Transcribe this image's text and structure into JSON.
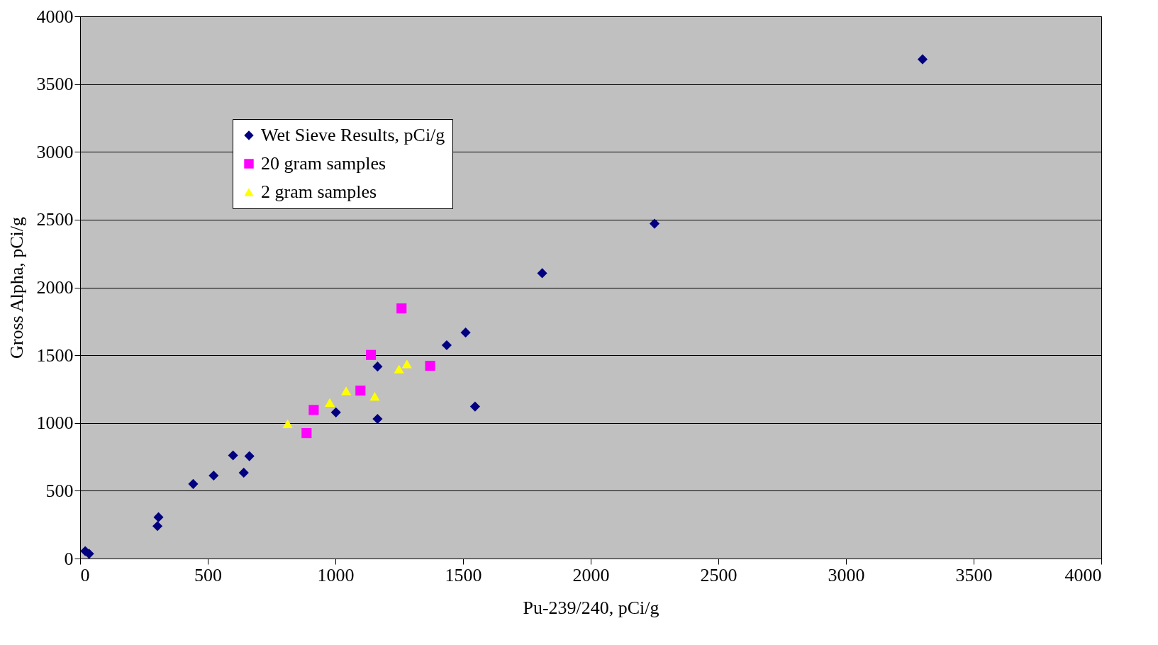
{
  "chart_data": {
    "type": "scatter",
    "xlabel": "Pu-239/240, pCi/g",
    "ylabel": "Gross Alpha, pCi/g",
    "xlim": [
      0,
      4000
    ],
    "xticks": [
      0,
      500,
      1000,
      1500,
      2000,
      2500,
      3000,
      3500,
      4000
    ],
    "ylim": [
      0,
      4000
    ],
    "yticks": [
      0,
      500,
      1000,
      1500,
      2000,
      2500,
      3000,
      3500,
      4000
    ],
    "grid": "y",
    "legend": "top left",
    "series": [
      {
        "name": "Wet Sieve Results, pCi/g",
        "color": "#000080",
        "marker": "diamond",
        "x": [
          20,
          35,
          307,
          303,
          443,
          523,
          599,
          663,
          641,
          1002,
          1165,
          1165,
          1436,
          1510,
          1547,
          1810,
          2250,
          3300
        ],
        "values": [
          55,
          35,
          305,
          239,
          550,
          612,
          761,
          755,
          633,
          1078,
          1416,
          1030,
          1574,
          1667,
          1121,
          2105,
          2470,
          3683
        ]
      },
      {
        "name": "20 gram samples",
        "color": "#ff00ff",
        "marker": "square",
        "x": [
          1259,
          1139,
          1371,
          1098,
          915,
          887
        ],
        "values": [
          1845,
          1502,
          1422,
          1239,
          1096,
          925
        ]
      },
      {
        "name": "2 gram samples",
        "color": "#ffff00",
        "marker": "triangle",
        "x": [
          813,
          978,
          1042,
          1154,
          1249,
          1280
        ],
        "values": [
          994,
          1151,
          1237,
          1197,
          1398,
          1436
        ]
      }
    ]
  }
}
